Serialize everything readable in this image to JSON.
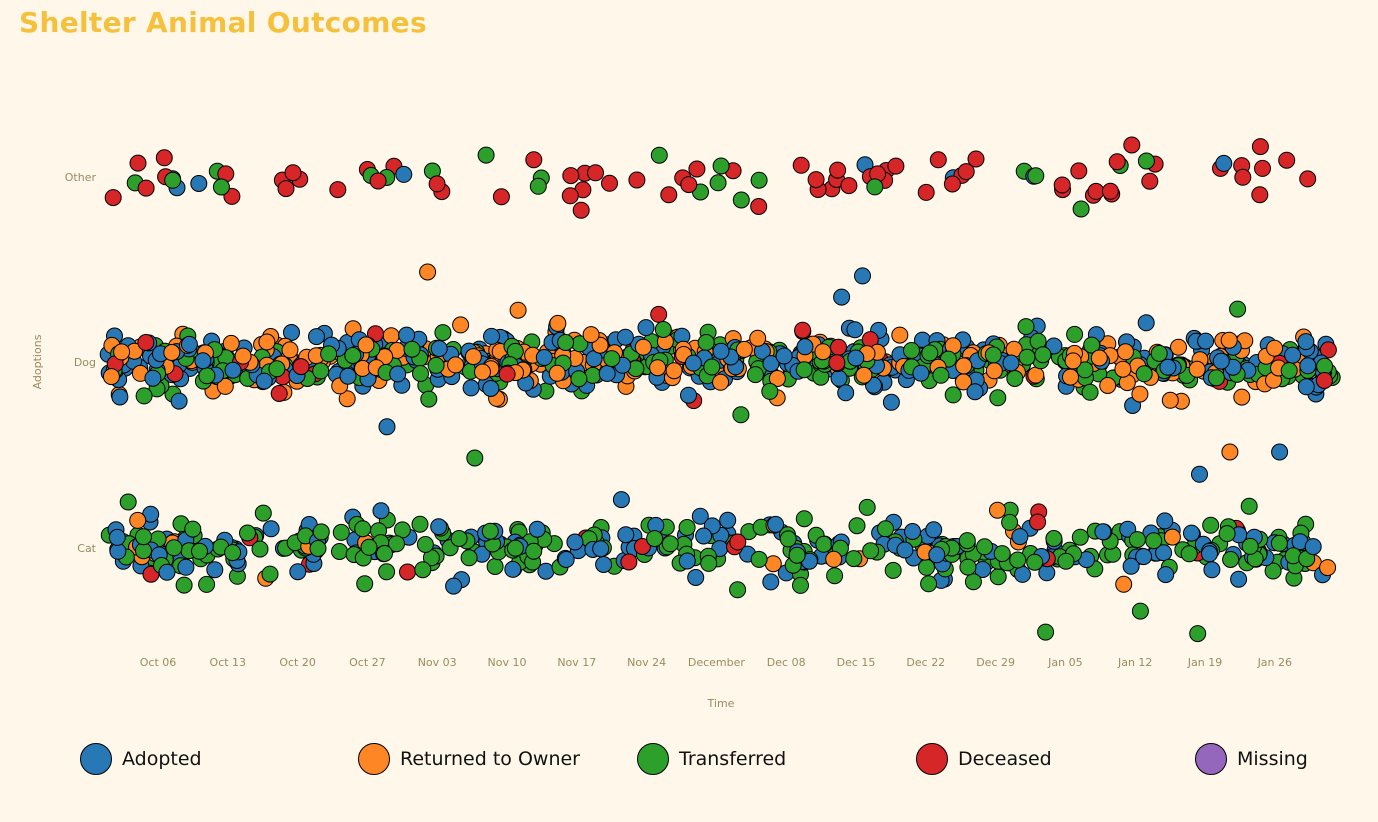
{
  "title": "Shelter Animal Outcomes",
  "chart_data": {
    "type": "scatter",
    "title": "Shelter Animal Outcomes",
    "xlabel": "Time",
    "ylabel": "Adoptions",
    "x_tick_labels": [
      "Oct 06",
      "Oct 13",
      "Oct 20",
      "Oct 27",
      "Nov 03",
      "Nov 10",
      "Nov 17",
      "Nov 24",
      "December",
      "Dec 08",
      "Dec 15",
      "Dec 22",
      "Dec 29",
      "Jan 05",
      "Jan 12",
      "Jan 19",
      "Jan 26"
    ],
    "x_range": [
      "2013-10-01",
      "2014-02-01"
    ],
    "categories": [
      "Other",
      "Dog",
      "Cat"
    ],
    "legend_position": "bottom",
    "grid": false,
    "series": [
      {
        "name": "Adopted",
        "color": "#2778b5"
      },
      {
        "name": "Returned to Owner",
        "color": "#fe8625"
      },
      {
        "name": "Transferred",
        "color": "#2da02c"
      },
      {
        "name": "Deceased",
        "color": "#d62628"
      },
      {
        "name": "Missing",
        "color": "#9467bd"
      }
    ],
    "counts_estimate": {
      "Other": {
        "Adopted": 8,
        "Returned to Owner": 0,
        "Transferred": 22,
        "Deceased": 70,
        "Missing": 0
      },
      "Dog": {
        "Adopted": 320,
        "Returned to Owner": 260,
        "Transferred": 240,
        "Deceased": 30,
        "Missing": 0
      },
      "Cat": {
        "Adopted": 170,
        "Returned to Owner": 25,
        "Transferred": 260,
        "Deceased": 15,
        "Missing": 0
      }
    }
  }
}
